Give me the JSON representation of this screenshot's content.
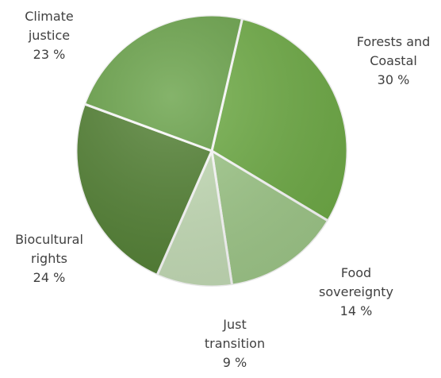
{
  "chart_data": {
    "type": "pie",
    "title": "",
    "slices": [
      {
        "label": [
          "Forests and",
          "Coastal"
        ],
        "value": 30,
        "value_label": "30 %",
        "color": "#70ad47"
      },
      {
        "label": [
          "Food",
          "sovereignty"
        ],
        "value": 14,
        "value_label": "14 %",
        "color": "#a1ca8b"
      },
      {
        "label": [
          "Just",
          "transition"
        ],
        "value": 9,
        "value_label": "9 %",
        "color": "#c7dfb9"
      },
      {
        "label": [
          "Biocultural",
          "rights"
        ],
        "value": 24,
        "value_label": "24 %",
        "color": "#548235"
      },
      {
        "label": [
          "Climate",
          "justice"
        ],
        "value": 23,
        "value_label": "23 %",
        "color": "#6aa34a"
      }
    ],
    "start_angle_deg": 13,
    "direction": "clockwise",
    "legend": "none",
    "data_labels": "outside"
  }
}
